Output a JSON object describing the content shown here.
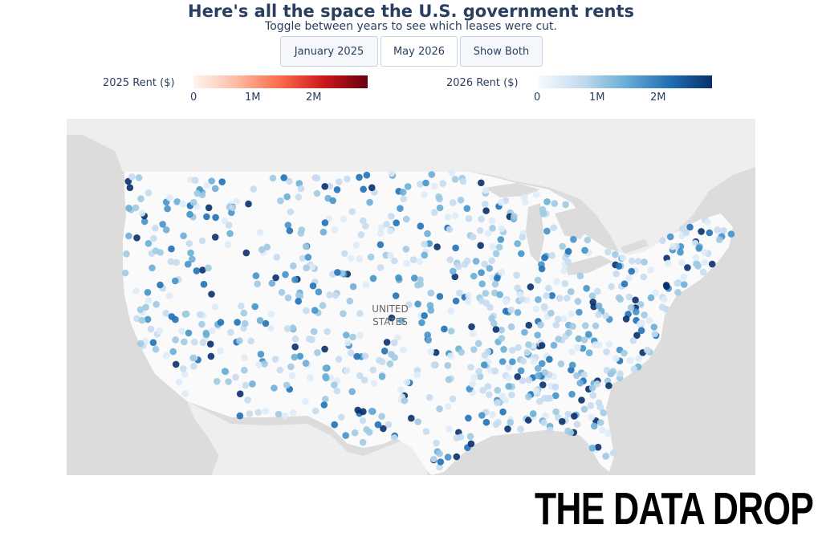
{
  "header": {
    "title": "Here's all the space the U.S. government rents",
    "subtitle": "Toggle between years to see which leases were cut."
  },
  "buttons": [
    {
      "label": "January 2025"
    },
    {
      "label": "May 2026"
    },
    {
      "label": "Show Both"
    }
  ],
  "colorbars": [
    {
      "title": "2025 Rent ($)",
      "ticks": [
        "0",
        "1M",
        "2M"
      ],
      "colors": [
        "#fff5f0",
        "#fcbba1",
        "#fb6a4a",
        "#cb181d",
        "#67000d"
      ]
    },
    {
      "title": "2026 Rent ($)",
      "ticks": [
        "0",
        "1M",
        "2M"
      ],
      "colors": [
        "#f7fbff",
        "#c6dbef",
        "#6baed6",
        "#2171b5",
        "#08306b"
      ]
    }
  ],
  "map": {
    "label_line1": "UNITED",
    "label_line2": "STATES",
    "land_color": "#fafafa",
    "water_color": "#dcdcdc",
    "foreign_land_color": "#eeeeee"
  },
  "logo": {
    "text": "THE DATA DROP"
  }
}
